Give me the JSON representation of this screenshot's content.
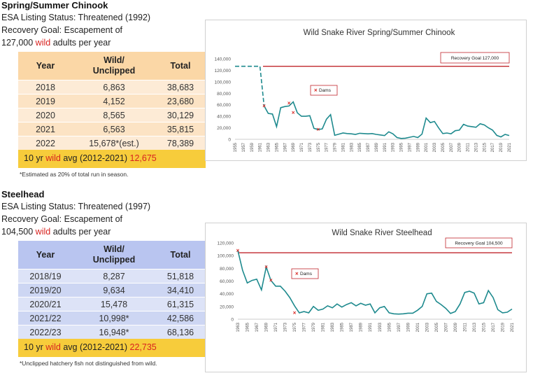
{
  "chinook": {
    "title": "Spring/Summer Chinook",
    "status": "ESA Listing Status: Threatened (1992)",
    "goal_line1": "Recovery Goal: Escapement of",
    "goal_num": "127,000",
    "goal_wild": "wild",
    "goal_rest": "adults per year",
    "headers": {
      "year": "Year",
      "wild_top": "Wild/",
      "wild_bottom": "Unclipped",
      "total": "Total"
    },
    "rows": [
      {
        "year": "2018",
        "wild": "6,863",
        "total": "38,683"
      },
      {
        "year": "2019",
        "wild": "4,152",
        "total": "23,680"
      },
      {
        "year": "2020",
        "wild": "8,565",
        "total": "30,129"
      },
      {
        "year": "2021",
        "wild": "6,563",
        "total": "35,815"
      },
      {
        "year": "2022",
        "wild": "15,678*(est.)",
        "total": "78,389"
      }
    ],
    "avg_pre": "10 yr",
    "avg_wild": "wild",
    "avg_mid": "avg (2012-2021)",
    "avg_value": "12,675",
    "footnote": "*Estimated as 20% of total run in season."
  },
  "steelhead": {
    "title": "Steelhead",
    "status": "ESA Listing Status: Threatened (1997)",
    "goal_line1": "Recovery Goal: Escapement of",
    "goal_num": "104,500",
    "goal_wild": "wild",
    "goal_rest": "adults per year",
    "headers": {
      "year": "Year",
      "wild_top": "Wild/",
      "wild_bottom": "Unclipped",
      "total": "Total"
    },
    "rows": [
      {
        "year": "2018/19",
        "wild": "8,287",
        "total": "51,818"
      },
      {
        "year": "2019/20",
        "wild": "9,634",
        "total": "34,410"
      },
      {
        "year": "2020/21",
        "wild": "15,478",
        "total": "61,315"
      },
      {
        "year": "2021/22",
        "wild": "10,998*",
        "total": "42,586"
      },
      {
        "year": "2022/23",
        "wild": "16,948*",
        "total": "68,136"
      }
    ],
    "avg_pre": "10 yr",
    "avg_wild": "wild",
    "avg_mid": "avg (2012-2021)",
    "avg_value": "22,735",
    "footnote": "*Unclipped hatchery fish not distinguished from wild."
  },
  "chart_data": [
    {
      "type": "line",
      "title": "Wild Snake River Spring/Summer Chinook",
      "x": [
        1955,
        1956,
        1957,
        1958,
        1959,
        1960,
        1961,
        1962,
        1963,
        1964,
        1965,
        1966,
        1967,
        1968,
        1969,
        1970,
        1971,
        1972,
        1973,
        1974,
        1975,
        1976,
        1977,
        1978,
        1979,
        1980,
        1981,
        1982,
        1983,
        1984,
        1985,
        1986,
        1987,
        1988,
        1989,
        1990,
        1991,
        1992,
        1993,
        1994,
        1995,
        1996,
        1997,
        1998,
        1999,
        2000,
        2001,
        2002,
        2003,
        2004,
        2005,
        2006,
        2007,
        2008,
        2009,
        2010,
        2011,
        2012,
        2013,
        2014,
        2015,
        2016,
        2017,
        2018,
        2019,
        2020,
        2021
      ],
      "dashed_x": [
        1955,
        1956,
        1957,
        1958,
        1959,
        1960,
        1961,
        1962
      ],
      "dashed_values": [
        127000,
        127000,
        127000,
        127000,
        127000,
        127000,
        127000,
        58000
      ],
      "values": [
        null,
        null,
        null,
        null,
        null,
        null,
        null,
        58000,
        45000,
        44000,
        22000,
        55000,
        57000,
        58000,
        65000,
        46000,
        40000,
        40000,
        41000,
        19000,
        17000,
        18000,
        35000,
        43000,
        7000,
        9000,
        11000,
        10000,
        9500,
        8500,
        10500,
        10000,
        9500,
        10000,
        8500,
        7500,
        6500,
        13000,
        9500,
        3000,
        1500,
        2000,
        3500,
        5000,
        3000,
        9000,
        37000,
        29000,
        31000,
        20000,
        10000,
        11000,
        9500,
        15000,
        16000,
        26000,
        23000,
        22000,
        21000,
        27000,
        25000,
        20000,
        16000,
        6863,
        4152,
        8565,
        6563
      ],
      "dams": [
        {
          "x": 1962,
          "y": 58000
        },
        {
          "x": 1968,
          "y": 63000
        },
        {
          "x": 1969,
          "y": 46000
        },
        {
          "x": 1975,
          "y": 17000
        }
      ],
      "dams_label": "Dams",
      "goal_label": "Recovery Goal 127,000",
      "goal_value": 127000,
      "ylim": [
        0,
        140000
      ],
      "yticks": [
        0,
        20000,
        40000,
        60000,
        80000,
        100000,
        120000,
        140000
      ],
      "ytick_labels": [
        "0",
        "20,000",
        "40,000",
        "60,000",
        "80,000",
        "100,000",
        "120,000",
        "140,000"
      ],
      "grid": false
    },
    {
      "type": "line",
      "title": "Wild Snake River Steelhead",
      "x": [
        1963,
        1964,
        1965,
        1966,
        1967,
        1968,
        1969,
        1970,
        1971,
        1972,
        1973,
        1974,
        1975,
        1976,
        1977,
        1978,
        1979,
        1980,
        1981,
        1982,
        1983,
        1984,
        1985,
        1986,
        1987,
        1988,
        1989,
        1990,
        1991,
        1992,
        1993,
        1994,
        1995,
        1996,
        1997,
        1998,
        1999,
        2000,
        2001,
        2002,
        2003,
        2004,
        2005,
        2006,
        2007,
        2008,
        2009,
        2010,
        2011,
        2012,
        2013,
        2014,
        2015,
        2016,
        2017,
        2018,
        2019,
        2020,
        2021
      ],
      "values": [
        108000,
        77000,
        57000,
        61000,
        63000,
        46000,
        82000,
        61000,
        52000,
        52000,
        44000,
        34000,
        21000,
        10000,
        12000,
        10000,
        20000,
        14000,
        16000,
        21000,
        18000,
        24000,
        19000,
        23000,
        26000,
        21000,
        25000,
        22000,
        24000,
        10000,
        18000,
        20000,
        10000,
        8500,
        8000,
        8500,
        9500,
        9500,
        14000,
        20000,
        40000,
        41000,
        28000,
        23000,
        17000,
        9000,
        12000,
        24000,
        42000,
        44000,
        41000,
        24000,
        26000,
        45000,
        34000,
        15000,
        10000,
        11000,
        16000
      ],
      "dams": [
        {
          "x": 1963,
          "y": 108000
        },
        {
          "x": 1969,
          "y": 82000
        },
        {
          "x": 1970,
          "y": 61000
        },
        {
          "x": 1975,
          "y": 10000
        }
      ],
      "dams_label": "Dams",
      "goal_label": "Recovery Goal 104,500",
      "goal_value": 104500,
      "ylim": [
        0,
        120000
      ],
      "yticks": [
        0,
        20000,
        40000,
        60000,
        80000,
        100000,
        120000
      ],
      "ytick_labels": [
        "0",
        "20,000",
        "40,000",
        "60,000",
        "80,000",
        "100,000",
        "120,000"
      ],
      "grid": false
    }
  ],
  "colors": {
    "series": "#1e8a8e",
    "goal": "#c0272d",
    "dams": "#d8231f"
  }
}
